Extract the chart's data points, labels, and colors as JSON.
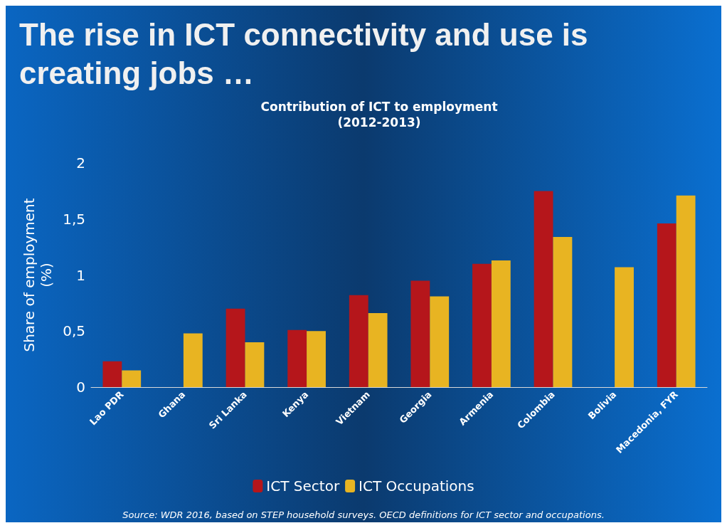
{
  "chart_data": {
    "type": "bar",
    "title": "The rise in ICT connectivity and use is creating jobs …",
    "subtitle": "Contribution of ICT to employment\n(2012-2013)",
    "ylabel": "Share of employment\n(%)",
    "categories": [
      "Lao PDR",
      "Ghana",
      "Sri Lanka",
      "Kenya",
      "Vietnam",
      "Georgia",
      "Armenia",
      "Colombia",
      "Bolivia",
      "Macedonia, FYR"
    ],
    "series": [
      {
        "name": "ICT Sector",
        "color": "#b5161b",
        "values": [
          0.23,
          null,
          0.7,
          0.51,
          0.82,
          0.95,
          1.1,
          1.75,
          null,
          1.46
        ]
      },
      {
        "name": "ICT Occupations",
        "color": "#e8b422",
        "values": [
          0.15,
          0.48,
          0.4,
          0.5,
          0.66,
          0.81,
          1.13,
          1.34,
          1.07,
          1.71
        ]
      }
    ],
    "ylim": [
      0,
      2
    ],
    "yticks": [
      0,
      {
        "value": 0.5,
        "label": "0,5"
      },
      1,
      {
        "value": 1.5,
        "label": "1,5"
      },
      2
    ],
    "grid": false,
    "legend": "bottom",
    "annotations": [
      "Source: WDR 2016, based on STEP household surveys. OECD definitions for ICT sector and occupations."
    ]
  }
}
